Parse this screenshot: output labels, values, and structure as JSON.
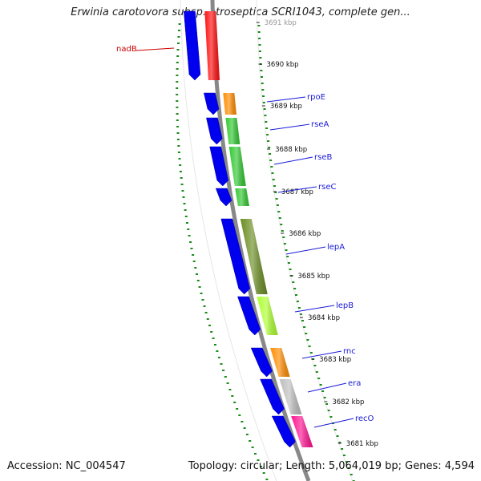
{
  "title": "Erwinia carotovora subsp. atroseptica SCRI1043, complete gen...",
  "footer": {
    "accession": "Accession: NC_004547",
    "summary": "Topology: circular; Length: 5,064,019 bp; Genes: 4,594"
  },
  "colors": {
    "forward_gene": "#0000ee",
    "backbone": "#888888",
    "gc_ticks": "#1a8a1a",
    "label_blue": "#1a1ad8",
    "label_red": "#cc0000"
  },
  "kbp_ticks": [
    "3691 kbp",
    "3690 kbp",
    "3689 kbp",
    "3688 kbp",
    "3687 kbp",
    "3686 kbp",
    "3685 kbp",
    "3684 kbp",
    "3683 kbp",
    "3682 kbp",
    "3681 kbp"
  ],
  "genes": [
    {
      "name": "nadB",
      "label_color": "red",
      "cog_color": "#ff1010"
    },
    {
      "name": "rpoE",
      "label_color": "blue",
      "cog_color": "#ff8c00"
    },
    {
      "name": "rseA",
      "label_color": "blue",
      "cog_color": "#32c832"
    },
    {
      "name": "rseB",
      "label_color": "blue",
      "cog_color": "#32c832"
    },
    {
      "name": "rseC",
      "label_color": "blue",
      "cog_color": "#32c832"
    },
    {
      "name": "lepA",
      "label_color": "blue",
      "cog_color": "#6b8e23"
    },
    {
      "name": "lepB",
      "label_color": "blue",
      "cog_color": "#adff2f"
    },
    {
      "name": "rnc",
      "label_color": "blue",
      "cog_color": "#ff8c00"
    },
    {
      "name": "era",
      "label_color": "blue",
      "cog_color": "#bebebe"
    },
    {
      "name": "recO",
      "label_color": "blue",
      "cog_color": "#ff1493"
    }
  ]
}
